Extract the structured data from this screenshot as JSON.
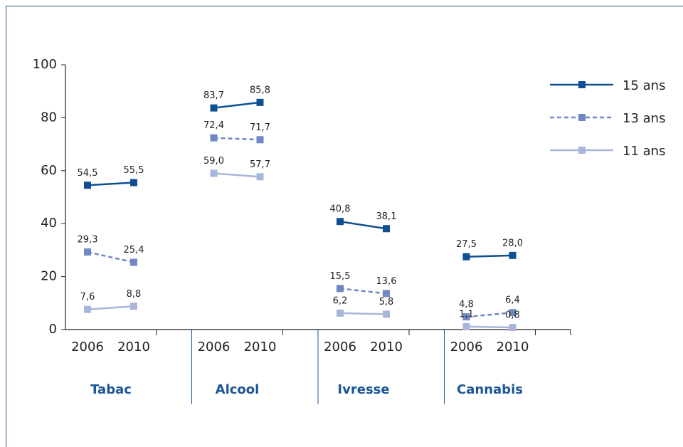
{
  "chart_data": {
    "type": "line",
    "groups": [
      "Tabac",
      "Alcool",
      "Ivresse",
      "Cannabis"
    ],
    "categories": [
      "2006",
      "2010",
      "2006",
      "2010",
      "2006",
      "2010",
      "2006",
      "2010"
    ],
    "ylim": [
      0,
      100
    ],
    "yticks": [
      0,
      20,
      40,
      60,
      80,
      100
    ],
    "series": [
      {
        "name": "15 ans",
        "color": "#0d4f91",
        "dashed": false,
        "values": [
          54.5,
          55.5,
          83.7,
          85.8,
          40.8,
          38.1,
          27.5,
          28.0
        ],
        "value_labels": [
          "54,5",
          "55,5",
          "83,7",
          "85,8",
          "40,8",
          "38,1",
          "27,5",
          "28,0"
        ]
      },
      {
        "name": "13 ans",
        "color": "#6f87c2",
        "dashed": true,
        "values": [
          29.3,
          25.4,
          72.4,
          71.7,
          15.5,
          13.6,
          4.8,
          6.4
        ],
        "value_labels": [
          "29,3",
          "25,4",
          "72,4",
          "71,7",
          "15,5",
          "13,6",
          "4,8",
          "6,4"
        ]
      },
      {
        "name": "11 ans",
        "color": "#a9b6dc",
        "dashed": false,
        "values": [
          7.6,
          8.8,
          59.0,
          57.7,
          6.2,
          5.8,
          1.1,
          0.8
        ],
        "value_labels": [
          "7,6",
          "8,8",
          "59,0",
          "57,7",
          "6,2",
          "5,8",
          "1,1",
          "0,8"
        ]
      }
    ]
  }
}
